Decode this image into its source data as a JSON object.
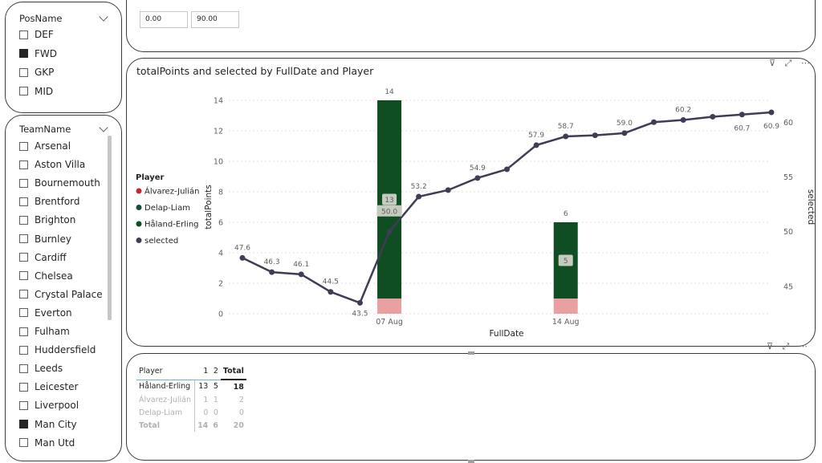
{
  "pos_slicer": {
    "title": "PosName",
    "items": [
      {
        "label": "DEF",
        "checked": false
      },
      {
        "label": "FWD",
        "checked": true
      },
      {
        "label": "GKP",
        "checked": false
      },
      {
        "label": "MID",
        "checked": false
      }
    ]
  },
  "team_slicer": {
    "title": "TeamName",
    "items": [
      {
        "label": "Arsenal",
        "checked": false
      },
      {
        "label": "Aston Villa",
        "checked": false
      },
      {
        "label": "Bournemouth",
        "checked": false
      },
      {
        "label": "Brentford",
        "checked": false
      },
      {
        "label": "Brighton",
        "checked": false
      },
      {
        "label": "Burnley",
        "checked": false
      },
      {
        "label": "Cardiff",
        "checked": false
      },
      {
        "label": "Chelsea",
        "checked": false
      },
      {
        "label": "Crystal Palace",
        "checked": false
      },
      {
        "label": "Everton",
        "checked": false
      },
      {
        "label": "Fulham",
        "checked": false
      },
      {
        "label": "Huddersfield",
        "checked": false
      },
      {
        "label": "Leeds",
        "checked": false
      },
      {
        "label": "Leicester",
        "checked": false
      },
      {
        "label": "Liverpool",
        "checked": false
      },
      {
        "label": "Man City",
        "checked": true
      },
      {
        "label": "Man Utd",
        "checked": false
      }
    ]
  },
  "range_slicer": {
    "min": "0.00",
    "max": "90.00"
  },
  "chart": {
    "title": "totalPoints and selected by FullDate and Player",
    "header_icons": "⊽ ⤢ ⋯",
    "legend_title": "Player",
    "legend": [
      {
        "label": "Álvarez-Julián",
        "color": "#c4262e"
      },
      {
        "label": "Delap-Liam",
        "color": "#1b4d3e"
      },
      {
        "label": "Håland-Erling",
        "color": "#0f4d22"
      },
      {
        "label": "selected",
        "color": "#3f3d56"
      }
    ]
  },
  "chart_data": {
    "type": "bar",
    "title": "totalPoints and selected by FullDate and Player",
    "xlabel": "FullDate",
    "ylabel": "totalPoints",
    "y2label": "selected",
    "ylim": [
      0,
      14
    ],
    "y2lim": [
      42.5,
      62
    ],
    "yticks": [
      "0",
      "2",
      "4",
      "6",
      "8",
      "10",
      "12",
      "14"
    ],
    "y2ticks": [
      "45",
      "50",
      "55",
      "60"
    ],
    "xticks": [
      {
        "label": "07 Aug",
        "index": 5
      },
      {
        "label": "14 Aug",
        "index": 11
      }
    ],
    "bars": [
      {
        "index": 5,
        "total_label": "14",
        "segments": [
          {
            "series": "Håland-Erling",
            "value": 13,
            "label": "13",
            "color": "#0f4d22"
          },
          {
            "series": "other",
            "value": 1,
            "color": "#e8a0a0"
          }
        ]
      },
      {
        "index": 11,
        "total_label": "6",
        "segments": [
          {
            "series": "Håland-Erling",
            "value": 5,
            "label": "5",
            "color": "#0f4d22"
          },
          {
            "series": "other",
            "value": 1,
            "color": "#e8a0a0"
          }
        ]
      }
    ],
    "line": {
      "series": "selected",
      "color": "#3f3d56",
      "values": [
        47.6,
        46.3,
        46.1,
        44.5,
        43.5,
        50.0,
        53.2,
        53.8,
        54.9,
        55.7,
        57.9,
        58.7,
        58.8,
        59.0,
        60.0,
        60.2,
        60.5,
        60.7,
        60.9
      ],
      "labels": [
        "47.6",
        "46.3",
        "46.1",
        "44.5",
        "43.5",
        "50.0",
        "53.2",
        "",
        "54.9",
        "",
        "57.9",
        "58.7",
        "",
        "59.0",
        "",
        "60.2",
        "",
        "60.7",
        "60.9"
      ]
    }
  },
  "matrix": {
    "columns": [
      "Player",
      "1",
      "2",
      "Total"
    ],
    "rows": [
      {
        "player": "Håland-Erling",
        "c1": "13",
        "c2": "5",
        "total": "18",
        "dim": false
      },
      {
        "player": "Álvarez-Julián",
        "c1": "1",
        "c2": "1",
        "total": "2",
        "dim": true
      },
      {
        "player": "Delap-Liam",
        "c1": "0",
        "c2": "0",
        "total": "0",
        "dim": true
      },
      {
        "player": "Total",
        "c1": "14",
        "c2": "6",
        "total": "20",
        "dim": true
      }
    ],
    "header_icons": "⊽ ⤢ ⋯"
  }
}
